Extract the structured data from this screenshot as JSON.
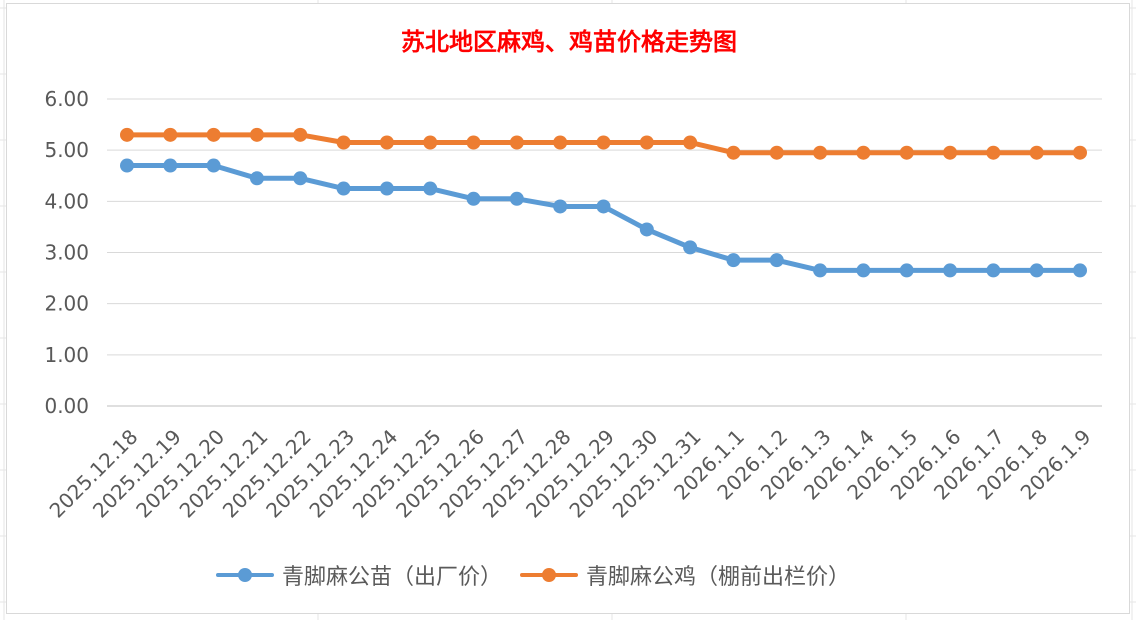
{
  "colors": {
    "title": "#ff0000",
    "series_1": "#5b9bd5",
    "series_2": "#ed7d31",
    "axis_text": "#595959",
    "grid": "#d9d9d9"
  },
  "chart_data": {
    "type": "line",
    "title": "苏北地区麻鸡、鸡苗价格走势图",
    "xlabel": "",
    "ylabel": "",
    "ylim": [
      0,
      6
    ],
    "y_ticks": [
      "0.00",
      "1.00",
      "2.00",
      "3.00",
      "4.00",
      "5.00",
      "6.00"
    ],
    "categories": [
      "2025.12.18",
      "2025.12.19",
      "2025.12.20",
      "2025.12.21",
      "2025.12.22",
      "2025.12.23",
      "2025.12.24",
      "2025.12.25",
      "2025.12.26",
      "2025.12.27",
      "2025.12.28",
      "2025.12.29",
      "2025.12.30",
      "2025.12.31",
      "2026.1.1",
      "2026.1.2",
      "2026.1.3",
      "2026.1.4",
      "2026.1.5",
      "2026.1.6",
      "2026.1.7",
      "2026.1.8",
      "2026.1.9"
    ],
    "series": [
      {
        "name": "青脚麻公苗（出厂价）",
        "color": "#5b9bd5",
        "values": [
          4.7,
          4.7,
          4.7,
          4.45,
          4.45,
          4.25,
          4.25,
          4.25,
          4.05,
          4.05,
          3.9,
          3.9,
          3.45,
          3.1,
          2.85,
          2.85,
          2.65,
          2.65,
          2.65,
          2.65,
          2.65,
          2.65,
          2.65
        ]
      },
      {
        "name": "青脚麻公鸡（棚前出栏价）",
        "color": "#ed7d31",
        "values": [
          5.3,
          5.3,
          5.3,
          5.3,
          5.3,
          5.15,
          5.15,
          5.15,
          5.15,
          5.15,
          5.15,
          5.15,
          5.15,
          5.15,
          4.95,
          4.95,
          4.95,
          4.95,
          4.95,
          4.95,
          4.95,
          4.95,
          4.95
        ]
      }
    ],
    "grid": true,
    "legend": "bottom"
  }
}
